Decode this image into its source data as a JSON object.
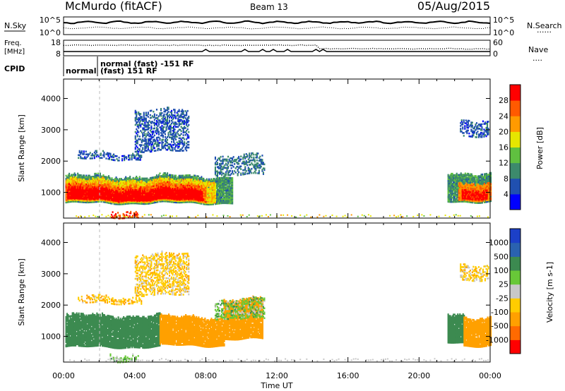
{
  "header": {
    "station": "McMurdo (fitACF)",
    "beam": "Beam 13",
    "date": "05/Aug/2015"
  },
  "top_panel": {
    "left_label": "N.Sky",
    "left_ticks": [
      "10^5",
      "10^0"
    ],
    "right_ticks": [
      "10^5",
      "10^0"
    ],
    "right_label": "N.Search",
    "right_label_symbol": "......"
  },
  "freq_panel": {
    "left_label_line1": "Freq.",
    "left_label_line2": "[MHz]",
    "left_ticks": [
      "18",
      "8"
    ],
    "right_ticks": [
      "60",
      "0"
    ],
    "right_label": "Nave",
    "right_label_symbol": "...."
  },
  "cpid_panel": {
    "label": "CPID",
    "modes": [
      "normal",
      "normal (fast) -151 RF",
      "(fast) 151 RF"
    ]
  },
  "colors": {
    "power_scale": [
      "#0000ff",
      "#2050b0",
      "#3c8a6c",
      "#60c040",
      "#e6e600",
      "#ff9a00",
      "#ff5a00",
      "#ff0000"
    ],
    "velocity_scale": [
      "#ff0000",
      "#ff6a00",
      "#ffa000",
      "#ffcc00",
      "#c8c8c8",
      "#68c838",
      "#3c8a50",
      "#2a62b0",
      "#1c40c8"
    ]
  },
  "chart_data": [
    {
      "type": "heatmap",
      "quantity": "Power",
      "ylabel": "Slant Range [km]",
      "yticks": [
        1000,
        2000,
        3000,
        4000
      ],
      "xticks": [
        "00:00",
        "04:00",
        "08:00",
        "12:00",
        "16:00",
        "20:00",
        "00:00"
      ],
      "xlim_hours": [
        0,
        24
      ],
      "ylim_km": [
        180,
        4620
      ],
      "colorbar_label": "Power [dB]",
      "colorbar_ticks": [
        "4",
        "8",
        "12",
        "16",
        "20",
        "24",
        "28"
      ],
      "colorbar_range": [
        0,
        30
      ],
      "layers": [
        {
          "value": 10,
          "t0": 0.1,
          "t1": 9.5,
          "lo": 650,
          "hi": 1500
        },
        {
          "value": 18,
          "t0": 0.1,
          "t1": 8.5,
          "lo": 700,
          "hi": 1380
        },
        {
          "value": 24,
          "t0": 0.1,
          "t1": 8.0,
          "lo": 730,
          "hi": 1220
        },
        {
          "value": 30,
          "t0": 0.2,
          "t1": 7.8,
          "lo": 760,
          "hi": 1080
        },
        {
          "value": 10,
          "t0": 21.6,
          "t1": 24,
          "lo": 700,
          "hi": 1600
        },
        {
          "value": 22,
          "t0": 22.2,
          "t1": 24,
          "lo": 750,
          "hi": 1300
        },
        {
          "value": 28,
          "t0": 22.4,
          "t1": 23.8,
          "lo": 800,
          "hi": 1100
        }
      ],
      "patches": [
        {
          "value": 6,
          "t0": 0.8,
          "t1": 4.4,
          "lo": 2050,
          "hi": 2250
        },
        {
          "value": 8,
          "t0": 8.5,
          "t1": 11.3,
          "lo": 1550,
          "hi": 2150
        },
        {
          "value": 6,
          "t0": 4.0,
          "t1": 7.0,
          "lo": 2300,
          "hi": 3600
        },
        {
          "value": 6,
          "t0": 22.3,
          "t1": 23.9,
          "lo": 2800,
          "hi": 3300
        },
        {
          "value": 26,
          "t0": 2.6,
          "t1": 4.2,
          "lo": 200,
          "hi": 400
        }
      ],
      "ground_scatter": {
        "t0": 0.2,
        "t1": 24,
        "lo": 200,
        "hi": 280
      }
    },
    {
      "type": "heatmap",
      "quantity": "Velocity",
      "ylabel": "Slant Range [km]",
      "yticks": [
        1000,
        2000,
        3000,
        4000
      ],
      "xticks": [
        "00:00",
        "04:00",
        "08:00",
        "12:00",
        "16:00",
        "20:00",
        "00:00"
      ],
      "xlim_hours": [
        0,
        24
      ],
      "ylim_km": [
        180,
        4620
      ],
      "xlabel": "Time UT",
      "colorbar_label": "Velocity [m s-1]",
      "colorbar_ticks": [
        "1000",
        "500",
        "100",
        "25",
        "-25",
        "-100",
        "-500",
        "-1000"
      ],
      "layers": [
        {
          "value": 300,
          "t0": 0.1,
          "t1": 5.4,
          "lo": 650,
          "hi": 1650
        },
        {
          "value": -250,
          "t0": 5.4,
          "t1": 9.0,
          "lo": 700,
          "hi": 1600
        },
        {
          "value": -250,
          "t0": 9.0,
          "t1": 11.2,
          "lo": 900,
          "hi": 2150
        },
        {
          "value": 300,
          "t0": 21.6,
          "t1": 22.5,
          "lo": 800,
          "hi": 1700
        },
        {
          "value": -250,
          "t0": 22.5,
          "t1": 24,
          "lo": 700,
          "hi": 1600
        }
      ],
      "patches": [
        {
          "value": -80,
          "t0": 0.8,
          "t1": 4.4,
          "lo": 2050,
          "hi": 2250
        },
        {
          "value": 60,
          "t0": 8.5,
          "t1": 11.3,
          "lo": 1550,
          "hi": 2150
        },
        {
          "value": -60,
          "t0": 4.0,
          "t1": 7.0,
          "lo": 2300,
          "hi": 3600
        },
        {
          "value": -60,
          "t0": 22.3,
          "t1": 23.9,
          "lo": 2800,
          "hi": 3300
        },
        {
          "value": 60,
          "t0": 2.6,
          "t1": 4.2,
          "lo": 200,
          "hi": 400
        }
      ],
      "ground_scatter": {
        "t0": 0.2,
        "t1": 24,
        "lo": 200,
        "hi": 280
      }
    }
  ]
}
